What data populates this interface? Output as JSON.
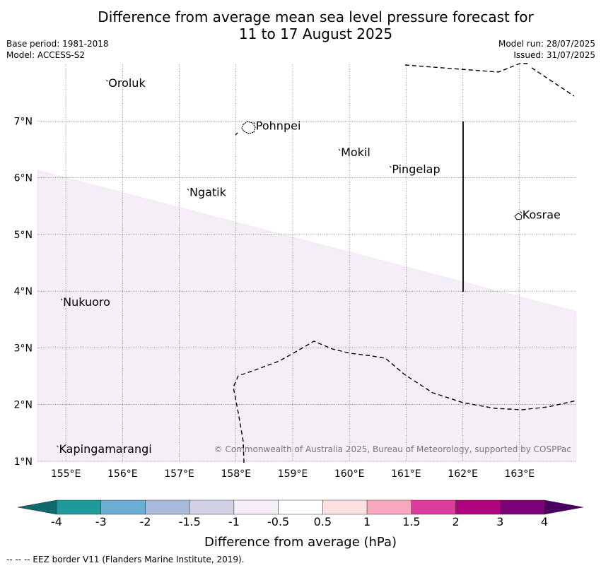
{
  "title": {
    "line1": "Difference from average mean sea level pressure forecast for",
    "line2": "11 to 17 August 2025"
  },
  "meta_left": {
    "base_period": "Base period: 1981-2018",
    "model": "Model: ACCESS-S2"
  },
  "meta_right": {
    "model_run": "Model run: 28/07/2025",
    "issued": "Issued: 31/07/2025"
  },
  "map": {
    "lon_range": [
      154.5,
      164.0
    ],
    "lat_range": [
      1.0,
      8.0
    ],
    "lon_ticks": [
      "155°E",
      "156°E",
      "157°E",
      "158°E",
      "159°E",
      "160°E",
      "161°E",
      "162°E",
      "163°E"
    ],
    "lat_ticks": [
      "1°N",
      "2°N",
      "3°N",
      "4°N",
      "5°N",
      "6°N",
      "7°N"
    ],
    "places": [
      {
        "name": "Oroluk",
        "lon": 155.75,
        "lat": 7.6
      },
      {
        "name": "Pohnpei",
        "lon": 158.35,
        "lat": 6.85
      },
      {
        "name": "Mokil",
        "lon": 159.85,
        "lat": 6.38
      },
      {
        "name": "Pingelap",
        "lon": 160.75,
        "lat": 6.08
      },
      {
        "name": "Ngatik",
        "lon": 157.18,
        "lat": 5.68
      },
      {
        "name": "Kosrae",
        "lon": 163.05,
        "lat": 5.28
      },
      {
        "name": "Nukuoro",
        "lon": 154.95,
        "lat": 3.74
      },
      {
        "name": "Kapingamarangi",
        "lon": 154.88,
        "lat": 1.15
      }
    ],
    "shaded_region": {
      "category": "-1 to -0.5",
      "color": "#f5eef7"
    },
    "credit": "© Commonwealth of Australia 2025, Bureau of Meteorology, supported by COSPPac"
  },
  "colorbar": {
    "labels": [
      "-4",
      "-3",
      "-2",
      "-1.5",
      "-1",
      "-0.5",
      "0.5",
      "1",
      "1.5",
      "2",
      "3",
      "4"
    ],
    "colors": [
      "#1e9a9a",
      "#6aaed6",
      "#a8badb",
      "#d2d2e6",
      "#f5eef7",
      "#ffffff",
      "#fde0e0",
      "#f7a8be",
      "#dc3c9c",
      "#ae047e",
      "#7a0177"
    ],
    "under_color": "#0f6b6b",
    "over_color": "#4a0060",
    "label": "Difference from average (hPa)"
  },
  "footer": "--  --  -- EEZ border V11 (Flanders Marine Institute, 2019)."
}
